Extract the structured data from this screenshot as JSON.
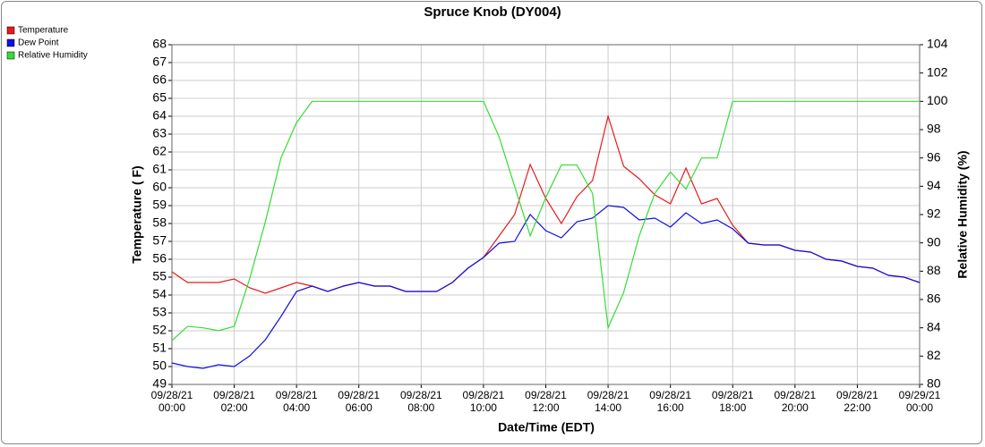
{
  "chart_data": {
    "type": "line",
    "title": "Spruce Knob (DY004)",
    "x_label": "Date/Time (EDT)",
    "y_label": "Temperature ( F)",
    "y2_label": "Relative Humidity (%)",
    "x": [
      0,
      0.5,
      1,
      1.5,
      2,
      2.5,
      3,
      3.5,
      4,
      4.5,
      5,
      5.5,
      6,
      6.5,
      7,
      7.5,
      8,
      8.5,
      9,
      9.5,
      10,
      10.5,
      11,
      11.5,
      12,
      12.5,
      13,
      13.5,
      14,
      14.5,
      15,
      15.5,
      16,
      16.5,
      17,
      17.5,
      18,
      18.5,
      19,
      19.5,
      20,
      20.5,
      21,
      21.5,
      22,
      22.5,
      23,
      23.5,
      24
    ],
    "xlim": [
      0,
      24
    ],
    "xticks": [
      {
        "value": 0,
        "label": "09/28/21 00:00"
      },
      {
        "value": 2,
        "label": "09/28/21 02:00"
      },
      {
        "value": 4,
        "label": "09/28/21 04:00"
      },
      {
        "value": 6,
        "label": "09/28/21 06:00"
      },
      {
        "value": 8,
        "label": "09/28/21 08:00"
      },
      {
        "value": 10,
        "label": "09/28/21 10:00"
      },
      {
        "value": 12,
        "label": "09/28/21 12:00"
      },
      {
        "value": 14,
        "label": "09/28/21 14:00"
      },
      {
        "value": 16,
        "label": "09/28/21 16:00"
      },
      {
        "value": 18,
        "label": "09/28/21 18:00"
      },
      {
        "value": 20,
        "label": "09/28/21 20:00"
      },
      {
        "value": 22,
        "label": "09/28/21 22:00"
      },
      {
        "value": 24,
        "label": "09/29/21 00:00"
      }
    ],
    "ylim": [
      49,
      68
    ],
    "yticks": [
      49,
      50,
      51,
      52,
      53,
      54,
      55,
      56,
      57,
      58,
      59,
      60,
      61,
      62,
      63,
      64,
      65,
      66,
      67,
      68
    ],
    "y2lim": [
      80,
      104
    ],
    "y2ticks": [
      80,
      82,
      84,
      86,
      88,
      90,
      92,
      94,
      96,
      98,
      100,
      102,
      104
    ],
    "grid": true,
    "legend": "top-left",
    "series": [
      {
        "name": "Temperature",
        "color": "#e41a1c",
        "values": [
          55.3,
          54.7,
          54.7,
          54.7,
          54.9,
          54.4,
          54.1,
          54.4,
          54.7,
          54.5,
          54.2,
          54.5,
          54.7,
          54.5,
          54.5,
          54.2,
          54.2,
          54.2,
          54.7,
          55.5,
          56.1,
          57.3,
          58.5,
          61.3,
          59.4,
          58.0,
          59.5,
          60.4,
          64.0,
          61.2,
          60.5,
          59.6,
          59.1,
          61.1,
          59.1,
          59.4,
          57.9,
          56.9,
          56.8,
          56.8,
          56.5,
          56.4,
          56.0,
          55.9,
          55.6,
          55.5,
          55.1,
          55.0,
          54.7
        ]
      },
      {
        "name": "Dew Point",
        "color": "#1010e0",
        "values": [
          50.2,
          50.0,
          49.9,
          50.1,
          50.0,
          50.6,
          51.5,
          52.8,
          54.2,
          54.5,
          54.2,
          54.5,
          54.7,
          54.5,
          54.5,
          54.2,
          54.2,
          54.2,
          54.7,
          55.5,
          56.1,
          56.9,
          57.0,
          58.5,
          57.6,
          57.2,
          58.1,
          58.3,
          59.0,
          58.9,
          58.2,
          58.3,
          57.8,
          58.6,
          58.0,
          58.2,
          57.7,
          56.9,
          56.8,
          56.8,
          56.5,
          56.4,
          56.0,
          55.9,
          55.6,
          55.5,
          55.1,
          55.0,
          54.7
        ]
      },
      {
        "name": "Relative Humidity",
        "color": "#33dd33",
        "axis": "y2",
        "values": [
          83.1,
          84.1,
          84.0,
          83.8,
          84.1,
          87.5,
          91.5,
          96.0,
          98.5,
          100,
          100,
          100,
          100,
          100,
          100,
          100,
          100,
          100,
          100,
          100,
          100,
          97.5,
          94.0,
          90.5,
          93.2,
          95.5,
          95.5,
          93.5,
          84.0,
          86.5,
          90.5,
          93.5,
          95.0,
          93.8,
          96.0,
          96.0,
          100,
          100,
          100,
          100,
          100,
          100,
          100,
          100,
          100,
          100,
          100,
          100,
          100
        ]
      }
    ]
  }
}
